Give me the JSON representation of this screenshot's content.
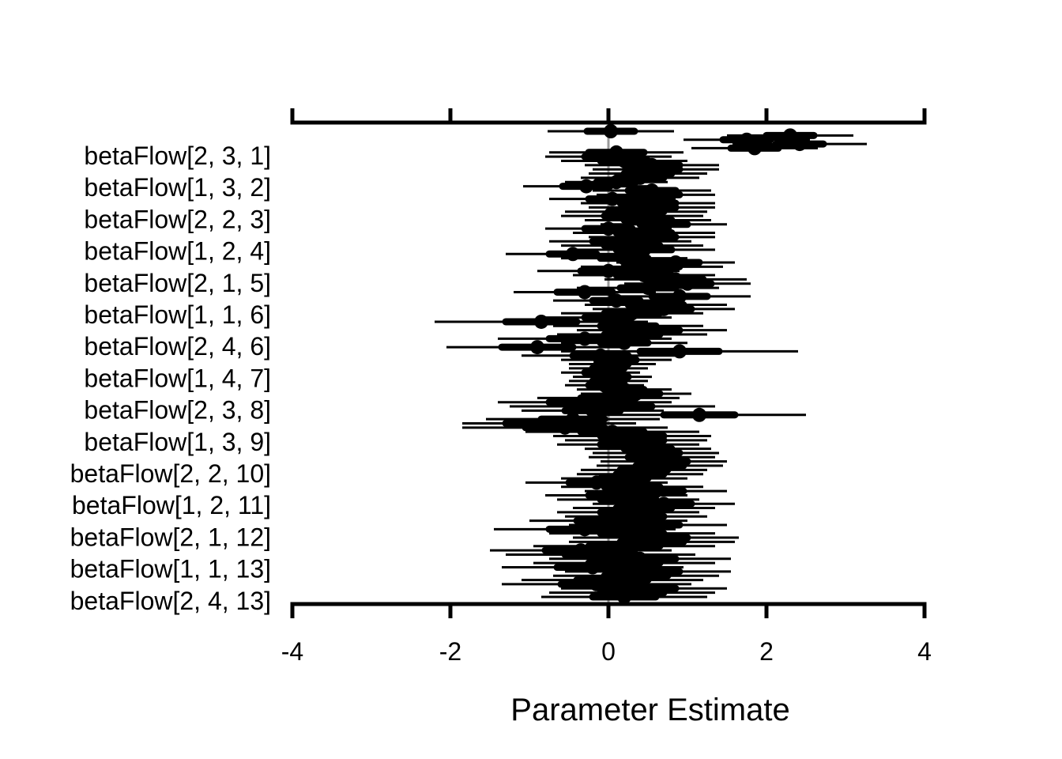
{
  "chart_data": {
    "type": "forest",
    "xlabel": "Parameter Estimate",
    "xlim": [
      -4,
      4
    ],
    "xticks": [
      -4,
      -2,
      0,
      2,
      4
    ],
    "x_tick_labels": [
      "-4",
      "-2",
      "0",
      "2",
      "4"
    ],
    "y_tick_labels": [
      "betaFlow[2, 3, 1]",
      "betaFlow[1, 3, 2]",
      "betaFlow[2, 2, 3]",
      "betaFlow[1, 2, 4]",
      "betaFlow[2, 1, 5]",
      "betaFlow[1, 1, 6]",
      "betaFlow[2, 4, 6]",
      "betaFlow[1, 4, 7]",
      "betaFlow[2, 3, 8]",
      "betaFlow[1, 3, 9]",
      "betaFlow[2, 2, 10]",
      "betaFlow[1, 2, 11]",
      "betaFlow[2, 1, 12]",
      "betaFlow[1, 1, 13]",
      "betaFlow[2, 4, 13]"
    ],
    "reference_line": 0,
    "estimates": [
      0.03,
      2.3,
      1.75,
      2.42,
      1.85,
      0.1,
      0.0,
      0.2,
      0.55,
      0.6,
      0.5,
      0.4,
      0.1,
      -0.28,
      0.55,
      0.6,
      0.05,
      0.5,
      0.55,
      0.35,
      0.3,
      0.5,
      0.7,
      0.0,
      0.45,
      0.55,
      0.15,
      0.3,
      0.45,
      -0.45,
      0.2,
      0.85,
      0.55,
      0.0,
      0.45,
      0.85,
      1.0,
      0.5,
      -0.3,
      0.9,
      0.1,
      0.6,
      0.7,
      0.3,
      0.0,
      -0.85,
      0.25,
      0.55,
      0.3,
      -0.3,
      0.2,
      -0.9,
      0.9,
      -0.1,
      0.1,
      0.05,
      0.0,
      -0.1,
      0.05,
      0.0,
      -0.05,
      0.2,
      0.35,
      0.0,
      -0.3,
      0.05,
      -0.2,
      1.15,
      -0.45,
      -0.75,
      -0.55,
      0.05,
      0.3,
      0.35,
      0.25,
      0.5,
      0.6,
      0.55,
      0.7,
      0.65,
      0.45,
      0.4,
      0.2,
      -0.15,
      0.3,
      0.6,
      0.1,
      0.25,
      0.7,
      0.45,
      0.25,
      0.35,
      0.0,
      0.5,
      -0.3,
      0.3,
      0.6,
      0.55,
      0.2,
      -0.35,
      -0.1,
      0.4,
      0.2,
      -0.2,
      0.5,
      0.35,
      0.05,
      -0.15,
      0.45,
      0.3,
      0.2
    ],
    "halfwidth_inner": [
      0.3,
      0.3,
      0.3,
      0.3,
      0.3,
      0.35,
      0.3,
      0.3,
      0.35,
      0.3,
      0.3,
      0.3,
      0.25,
      0.3,
      0.3,
      0.3,
      0.3,
      0.35,
      0.3,
      0.35,
      0.35,
      0.3,
      0.3,
      0.3,
      0.35,
      0.3,
      0.35,
      0.35,
      0.35,
      0.3,
      0.3,
      0.3,
      0.35,
      0.35,
      0.35,
      0.35,
      0.3,
      0.35,
      0.35,
      0.35,
      0.3,
      0.35,
      0.35,
      0.35,
      0.3,
      0.45,
      0.35,
      0.35,
      0.35,
      0.45,
      0.3,
      0.45,
      0.5,
      0.35,
      0.25,
      0.2,
      0.2,
      0.2,
      0.2,
      0.2,
      0.2,
      0.25,
      0.3,
      0.35,
      0.45,
      0.5,
      0.35,
      0.45,
      0.4,
      0.55,
      0.5,
      0.4,
      0.4,
      0.35,
      0.35,
      0.3,
      0.3,
      0.3,
      0.3,
      0.3,
      0.3,
      0.3,
      0.3,
      0.35,
      0.35,
      0.35,
      0.35,
      0.35,
      0.35,
      0.35,
      0.35,
      0.35,
      0.4,
      0.4,
      0.45,
      0.4,
      0.4,
      0.4,
      0.45,
      0.45,
      0.45,
      0.45,
      0.45,
      0.45,
      0.4,
      0.4,
      0.45,
      0.45,
      0.4,
      0.4,
      0.4
    ],
    "halfwidth_outer": [
      0.8,
      0.8,
      0.8,
      0.85,
      0.8,
      0.85,
      0.8,
      0.8,
      0.85,
      0.8,
      0.75,
      0.75,
      0.65,
      0.8,
      0.75,
      0.75,
      0.8,
      0.85,
      0.8,
      0.9,
      0.9,
      0.8,
      0.8,
      0.8,
      0.9,
      0.8,
      0.9,
      0.9,
      0.9,
      0.85,
      0.8,
      0.75,
      0.9,
      0.9,
      0.9,
      0.9,
      0.8,
      0.9,
      0.9,
      0.9,
      0.8,
      0.9,
      0.9,
      0.9,
      0.8,
      1.35,
      0.95,
      0.95,
      0.95,
      1.1,
      0.8,
      1.15,
      1.5,
      1.0,
      0.7,
      0.55,
      0.5,
      0.5,
      0.5,
      0.5,
      0.5,
      0.6,
      0.7,
      0.9,
      1.1,
      1.3,
      0.9,
      1.35,
      1.1,
      1.1,
      1.3,
      1.1,
      1.0,
      0.9,
      0.9,
      0.8,
      0.8,
      0.8,
      0.8,
      0.8,
      0.8,
      0.8,
      0.8,
      0.9,
      0.9,
      0.9,
      0.9,
      0.9,
      0.9,
      0.9,
      0.9,
      0.9,
      1.0,
      1.0,
      1.15,
      1.05,
      1.05,
      1.05,
      1.15,
      1.15,
      1.2,
      1.15,
      1.15,
      1.15,
      1.05,
      1.05,
      1.15,
      1.2,
      1.05,
      1.05,
      1.05
    ]
  }
}
